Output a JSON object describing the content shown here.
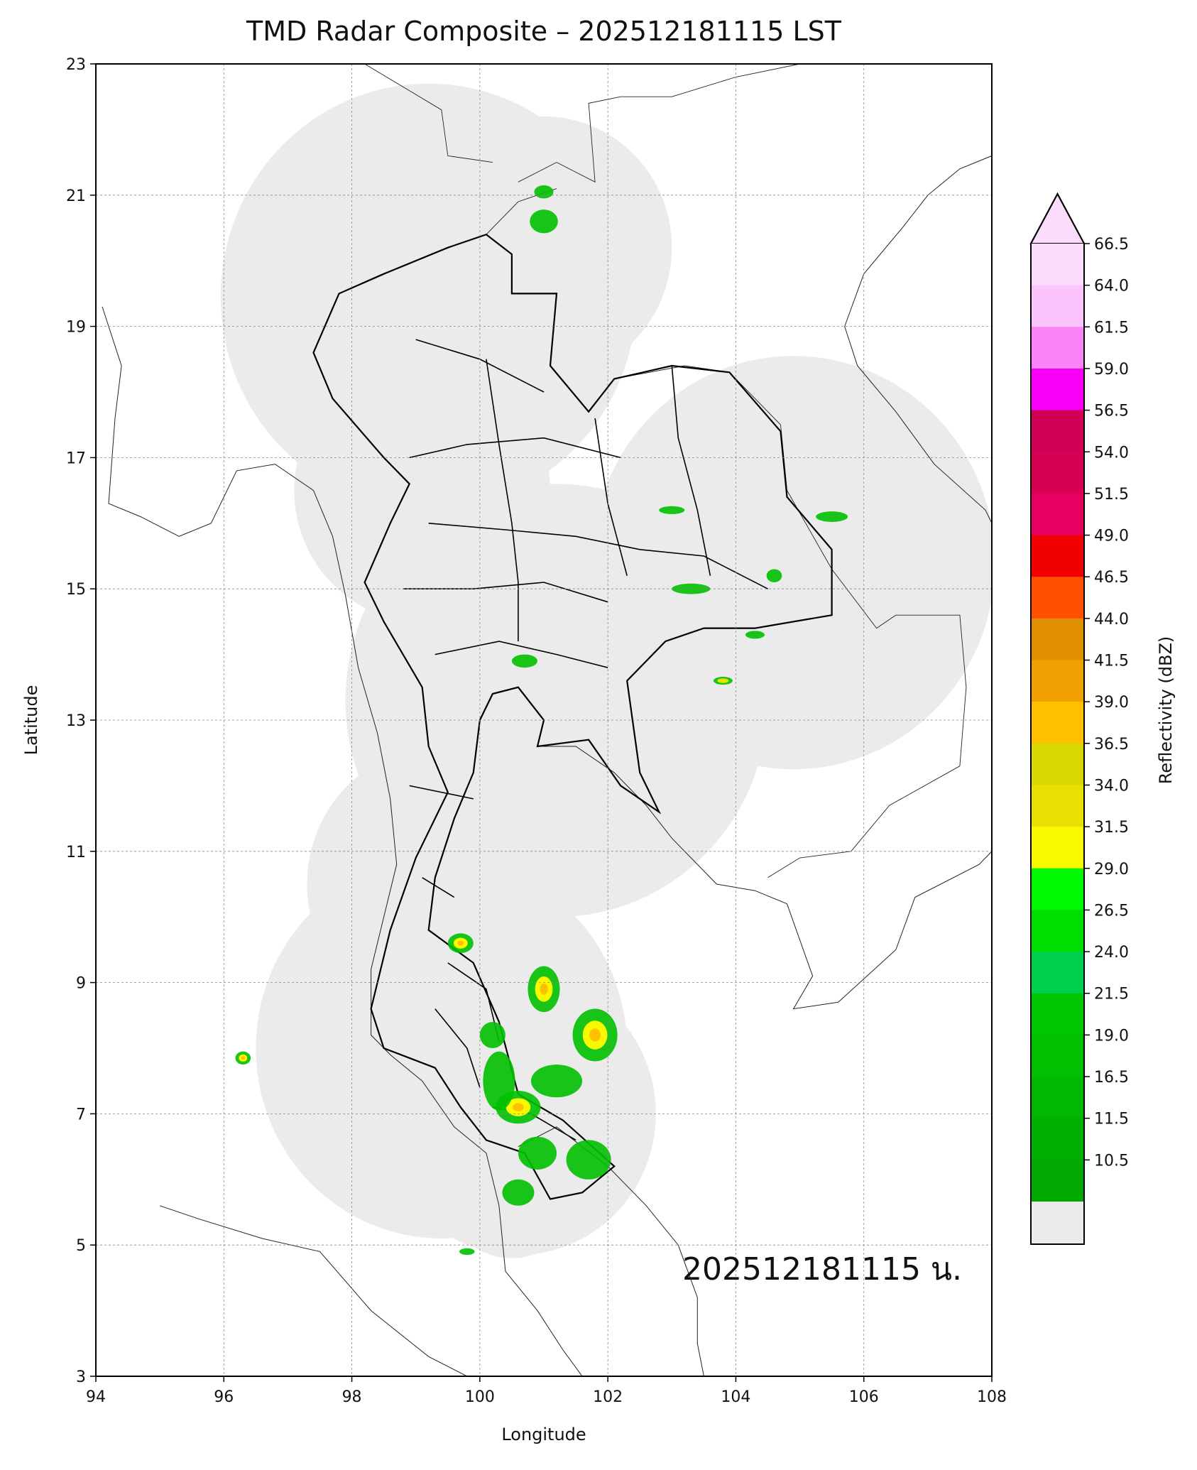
{
  "title": "TMD Radar Composite – 202512181115 LST",
  "stamp": "202512181115 น.",
  "axes": {
    "xlabel": "Longitude",
    "ylabel": "Latitude",
    "x_ticks": [
      "94",
      "96",
      "98",
      "100",
      "102",
      "104",
      "106",
      "108"
    ],
    "y_ticks": [
      "23",
      "21",
      "19",
      "17",
      "15",
      "13",
      "11",
      "9",
      "7",
      "5",
      "3"
    ],
    "xlim": [
      94,
      108
    ],
    "ylim": [
      3,
      23
    ],
    "grid": true
  },
  "colorbar": {
    "label": "Reflectivity (dBZ)",
    "ticks": [
      "66.5",
      "64.0",
      "61.5",
      "59.0",
      "56.5",
      "54.0",
      "51.5",
      "49.0",
      "46.5",
      "44.0",
      "41.5",
      "39.0",
      "36.5",
      "34.0",
      "31.5",
      "29.0",
      "26.5",
      "24.0",
      "21.5",
      "19.0",
      "16.5",
      "11.5",
      "10.5"
    ],
    "colors": [
      "#fcdcfc",
      "#fcc4fc",
      "#f884f8",
      "#f800f8",
      "#d00054",
      "#d80050",
      "#e80060",
      "#f00000",
      "#ff5000",
      "#e09000",
      "#f0a000",
      "#ffc000",
      "#d8d800",
      "#e8e000",
      "#f8f800",
      "#00f800",
      "#00e000",
      "#00d050",
      "#00c800",
      "#00c000",
      "#00b800",
      "#00b000",
      "#00a800"
    ],
    "below_color": "#ebebeb",
    "extend": "max"
  },
  "coverage_color": "#ebebeb",
  "map_data": {
    "radar_sites": [
      {
        "lon": 99.2,
        "lat": 19.45,
        "range_deg": 3.25
      },
      {
        "lon": 101.0,
        "lat": 20.2,
        "range_deg": 2.0
      },
      {
        "lon": 99.1,
        "lat": 16.5,
        "range_deg": 2.0
      },
      {
        "lon": 104.9,
        "lat": 15.4,
        "range_deg": 3.15
      },
      {
        "lon": 101.2,
        "lat": 13.3,
        "range_deg": 3.3
      },
      {
        "lon": 99.4,
        "lat": 10.5,
        "range_deg": 2.1
      },
      {
        "lon": 99.4,
        "lat": 8.0,
        "range_deg": 2.9
      },
      {
        "lon": 100.6,
        "lat": 7.0,
        "range_deg": 2.15
      },
      {
        "lon": 100.5,
        "lat": 5.9,
        "range_deg": 1.1
      }
    ],
    "echoes": [
      {
        "lon": 101.0,
        "lat": 8.9,
        "rx": 0.25,
        "ry": 0.35,
        "band": "moderate"
      },
      {
        "lon": 101.8,
        "lat": 8.2,
        "rx": 0.35,
        "ry": 0.4,
        "band": "moderate"
      },
      {
        "lon": 100.6,
        "lat": 7.1,
        "rx": 0.35,
        "ry": 0.25,
        "band": "moderate"
      },
      {
        "lon": 101.2,
        "lat": 7.5,
        "rx": 0.4,
        "ry": 0.25,
        "band": "light"
      },
      {
        "lon": 101.7,
        "lat": 6.3,
        "rx": 0.35,
        "ry": 0.3,
        "band": "light"
      },
      {
        "lon": 100.3,
        "lat": 7.5,
        "rx": 0.25,
        "ry": 0.45,
        "band": "light"
      },
      {
        "lon": 100.9,
        "lat": 6.4,
        "rx": 0.3,
        "ry": 0.25,
        "band": "light"
      },
      {
        "lon": 100.6,
        "lat": 5.8,
        "rx": 0.25,
        "ry": 0.2,
        "band": "light"
      },
      {
        "lon": 99.7,
        "lat": 9.6,
        "rx": 0.2,
        "ry": 0.15,
        "band": "moderate"
      },
      {
        "lon": 100.2,
        "lat": 8.2,
        "rx": 0.2,
        "ry": 0.2,
        "band": "light"
      },
      {
        "lon": 96.3,
        "lat": 7.85,
        "rx": 0.12,
        "ry": 0.1,
        "band": "moderate"
      },
      {
        "lon": 101.0,
        "lat": 20.6,
        "rx": 0.22,
        "ry": 0.18,
        "band": "light"
      },
      {
        "lon": 101.0,
        "lat": 21.05,
        "rx": 0.15,
        "ry": 0.1,
        "band": "light"
      },
      {
        "lon": 105.5,
        "lat": 16.1,
        "rx": 0.25,
        "ry": 0.08,
        "band": "light"
      },
      {
        "lon": 103.3,
        "lat": 15.0,
        "rx": 0.3,
        "ry": 0.08,
        "band": "light"
      },
      {
        "lon": 103.0,
        "lat": 16.2,
        "rx": 0.2,
        "ry": 0.06,
        "band": "light"
      },
      {
        "lon": 104.3,
        "lat": 14.3,
        "rx": 0.15,
        "ry": 0.06,
        "band": "light"
      },
      {
        "lon": 103.8,
        "lat": 13.6,
        "rx": 0.15,
        "ry": 0.06,
        "band": "weak"
      },
      {
        "lon": 104.6,
        "lat": 15.2,
        "rx": 0.12,
        "ry": 0.1,
        "band": "light"
      },
      {
        "lon": 100.7,
        "lat": 13.9,
        "rx": 0.2,
        "ry": 0.1,
        "band": "light"
      },
      {
        "lon": 99.8,
        "lat": 4.9,
        "rx": 0.12,
        "ry": 0.05,
        "band": "light"
      }
    ],
    "band_colors": {
      "light": "#00c000",
      "moderate": "#f8f800",
      "heavy": "#ffc000",
      "weak": "#e8e000"
    }
  }
}
